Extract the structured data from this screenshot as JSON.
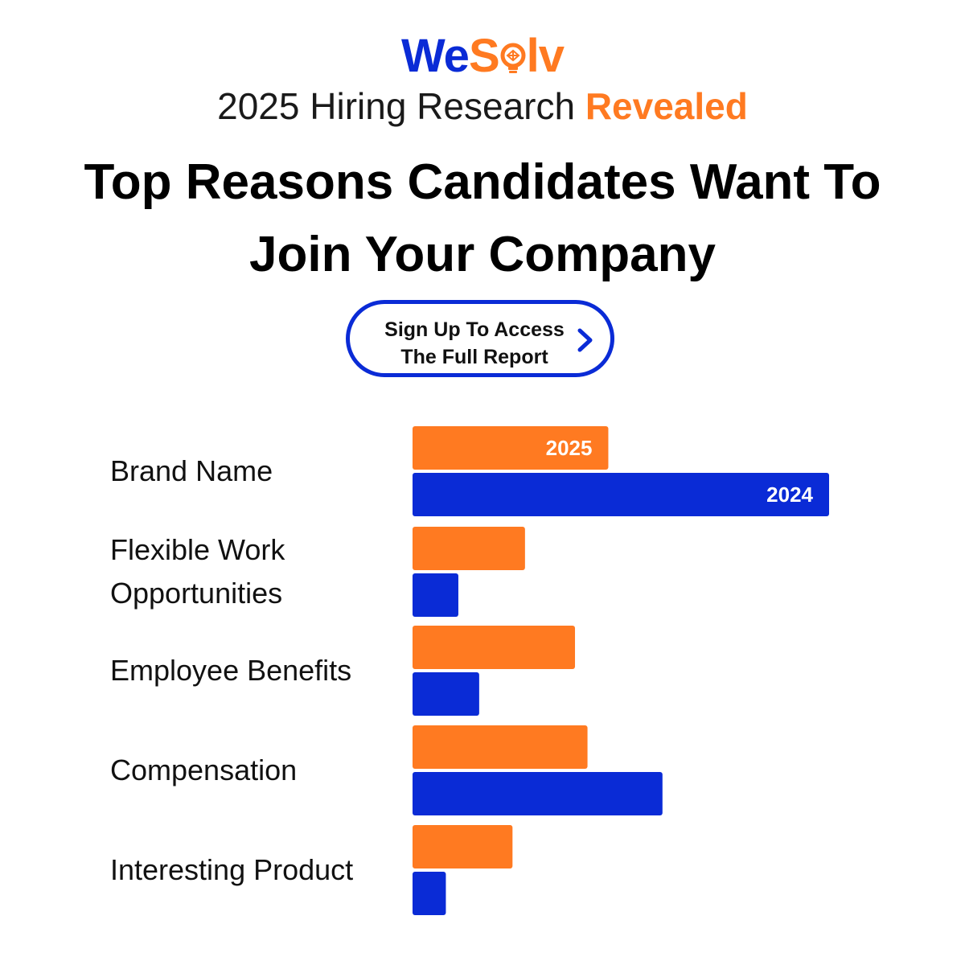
{
  "brand": {
    "logo_we": "We",
    "logo_s": "S",
    "logo_lv": "lv",
    "colors": {
      "blue": "#0A2BD6",
      "orange": "#FF7A21"
    }
  },
  "header": {
    "subtitle_main": "2025 Hiring Research",
    "subtitle_accent": "Revealed",
    "headline": "Top Reasons Candidates Want To Join Your Company"
  },
  "cta": {
    "line1": "Sign Up To Access",
    "line2": "The Full Report",
    "icon": "chevron-right-icon"
  },
  "chart_data": {
    "type": "bar",
    "orientation": "horizontal",
    "categories": [
      "Brand Name",
      "Flexible Work Opportunities",
      "Employee Benefits",
      "Compensation",
      "Interesting Product"
    ],
    "series": [
      {
        "name": "2025",
        "color": "#FF7A21",
        "values": [
          47,
          27,
          39,
          42,
          24
        ]
      },
      {
        "name": "2024",
        "color": "#0A2BD6",
        "values": [
          100,
          11,
          16,
          60,
          8
        ]
      }
    ],
    "xlim": [
      0,
      100
    ],
    "series_labels_on_first_category": true,
    "grid": false,
    "legend": "none"
  }
}
